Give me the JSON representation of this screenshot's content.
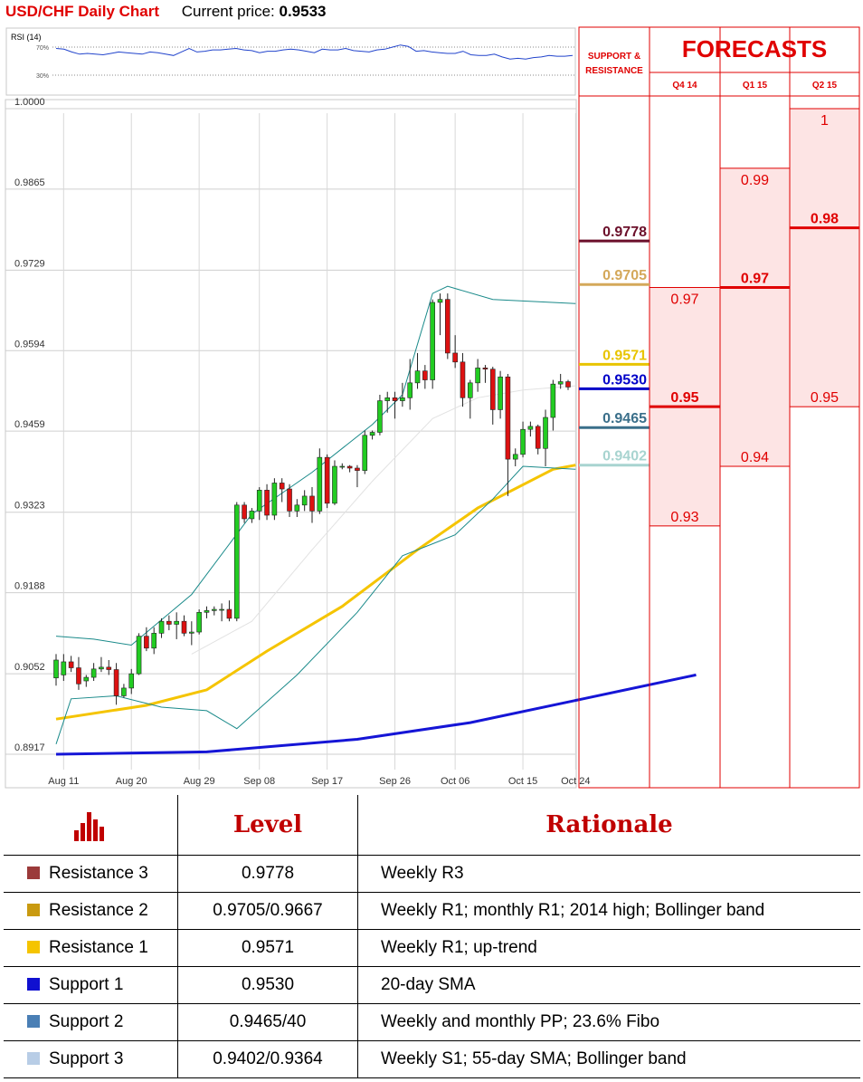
{
  "header": {
    "title": "USD/CHF Daily Chart",
    "price_label": "Current price:",
    "price_value": "0.9533"
  },
  "rsi": {
    "label": "RSI (14)",
    "levels": [
      "70%",
      "30%"
    ],
    "values": [
      68,
      67,
      63,
      60,
      61,
      60,
      59,
      61,
      63,
      62,
      61,
      60,
      63,
      62,
      60,
      58,
      63,
      68,
      63,
      64,
      66,
      66,
      67,
      68,
      66,
      65,
      62,
      64,
      64,
      66,
      67,
      66,
      64,
      62,
      67,
      66,
      66,
      68,
      65,
      64,
      63,
      66,
      67,
      70,
      73,
      71,
      64,
      65,
      63,
      62,
      61,
      61,
      64,
      59,
      58,
      58,
      60,
      56,
      53,
      54,
      53,
      55,
      56,
      58,
      57,
      57,
      58
    ]
  },
  "chart_data": {
    "type": "candlestick",
    "title": "USD/CHF Daily Chart",
    "y_ticks": [
      "1.0000",
      "0.9865",
      "0.9729",
      "0.9594",
      "0.9459",
      "0.9323",
      "0.9188",
      "0.9052",
      "0.8917"
    ],
    "ylim": [
      0.8917,
      1.0
    ],
    "x_ticks": [
      "Aug 11",
      "Aug 20",
      "Aug 29",
      "Sep 08",
      "Sep 17",
      "Sep 26",
      "Oct 06",
      "Oct 15",
      "Oct 24"
    ],
    "candles": [
      {
        "o": 0.9045,
        "h": 0.9085,
        "l": 0.9032,
        "c": 0.9075
      },
      {
        "o": 0.905,
        "h": 0.9085,
        "l": 0.904,
        "c": 0.9072
      },
      {
        "o": 0.9072,
        "h": 0.9082,
        "l": 0.9055,
        "c": 0.9062
      },
      {
        "o": 0.9062,
        "h": 0.908,
        "l": 0.9025,
        "c": 0.9035
      },
      {
        "o": 0.904,
        "h": 0.905,
        "l": 0.903,
        "c": 0.9046
      },
      {
        "o": 0.9046,
        "h": 0.907,
        "l": 0.904,
        "c": 0.906
      },
      {
        "o": 0.906,
        "h": 0.908,
        "l": 0.9055,
        "c": 0.9063
      },
      {
        "o": 0.9063,
        "h": 0.9075,
        "l": 0.905,
        "c": 0.9059
      },
      {
        "o": 0.9059,
        "h": 0.907,
        "l": 0.9,
        "c": 0.9015
      },
      {
        "o": 0.9015,
        "h": 0.9035,
        "l": 0.9012,
        "c": 0.9028
      },
      {
        "o": 0.9028,
        "h": 0.906,
        "l": 0.9018,
        "c": 0.9052
      },
      {
        "o": 0.9052,
        "h": 0.912,
        "l": 0.905,
        "c": 0.9115
      },
      {
        "o": 0.9115,
        "h": 0.913,
        "l": 0.909,
        "c": 0.9095
      },
      {
        "o": 0.9095,
        "h": 0.913,
        "l": 0.9085,
        "c": 0.912
      },
      {
        "o": 0.912,
        "h": 0.9145,
        "l": 0.9112,
        "c": 0.914
      },
      {
        "o": 0.914,
        "h": 0.915,
        "l": 0.9125,
        "c": 0.9135
      },
      {
        "o": 0.9135,
        "h": 0.9155,
        "l": 0.911,
        "c": 0.914
      },
      {
        "o": 0.914,
        "h": 0.915,
        "l": 0.9115,
        "c": 0.912
      },
      {
        "o": 0.912,
        "h": 0.914,
        "l": 0.91,
        "c": 0.9122
      },
      {
        "o": 0.9122,
        "h": 0.916,
        "l": 0.9118,
        "c": 0.9155
      },
      {
        "o": 0.9155,
        "h": 0.9165,
        "l": 0.9145,
        "c": 0.9158
      },
      {
        "o": 0.9158,
        "h": 0.9165,
        "l": 0.915,
        "c": 0.916
      },
      {
        "o": 0.916,
        "h": 0.917,
        "l": 0.914,
        "c": 0.916
      },
      {
        "o": 0.916,
        "h": 0.9175,
        "l": 0.914,
        "c": 0.9145
      },
      {
        "o": 0.9145,
        "h": 0.934,
        "l": 0.914,
        "c": 0.9335
      },
      {
        "o": 0.9335,
        "h": 0.934,
        "l": 0.9305,
        "c": 0.9312
      },
      {
        "o": 0.9312,
        "h": 0.933,
        "l": 0.9305,
        "c": 0.9325
      },
      {
        "o": 0.9325,
        "h": 0.9365,
        "l": 0.931,
        "c": 0.936
      },
      {
        "o": 0.936,
        "h": 0.937,
        "l": 0.931,
        "c": 0.9318
      },
      {
        "o": 0.9318,
        "h": 0.938,
        "l": 0.931,
        "c": 0.9372
      },
      {
        "o": 0.9372,
        "h": 0.938,
        "l": 0.934,
        "c": 0.9362
      },
      {
        "o": 0.9362,
        "h": 0.937,
        "l": 0.9315,
        "c": 0.9325
      },
      {
        "o": 0.9325,
        "h": 0.9345,
        "l": 0.9315,
        "c": 0.9335
      },
      {
        "o": 0.9335,
        "h": 0.936,
        "l": 0.9325,
        "c": 0.935
      },
      {
        "o": 0.935,
        "h": 0.9365,
        "l": 0.9305,
        "c": 0.9325
      },
      {
        "o": 0.9325,
        "h": 0.943,
        "l": 0.932,
        "c": 0.9415
      },
      {
        "o": 0.9415,
        "h": 0.942,
        "l": 0.933,
        "c": 0.9338
      },
      {
        "o": 0.9338,
        "h": 0.941,
        "l": 0.9335,
        "c": 0.94
      },
      {
        "o": 0.94,
        "h": 0.9405,
        "l": 0.9395,
        "c": 0.94
      },
      {
        "o": 0.94,
        "h": 0.9402,
        "l": 0.939,
        "c": 0.9397
      },
      {
        "o": 0.9397,
        "h": 0.9402,
        "l": 0.9365,
        "c": 0.9393
      },
      {
        "o": 0.9393,
        "h": 0.946,
        "l": 0.9387,
        "c": 0.9452
      },
      {
        "o": 0.9452,
        "h": 0.946,
        "l": 0.9445,
        "c": 0.9457
      },
      {
        "o": 0.9457,
        "h": 0.952,
        "l": 0.9452,
        "c": 0.951
      },
      {
        "o": 0.951,
        "h": 0.9525,
        "l": 0.949,
        "c": 0.9515
      },
      {
        "o": 0.9515,
        "h": 0.9525,
        "l": 0.948,
        "c": 0.951
      },
      {
        "o": 0.951,
        "h": 0.954,
        "l": 0.95,
        "c": 0.9515
      },
      {
        "o": 0.9515,
        "h": 0.958,
        "l": 0.9495,
        "c": 0.954
      },
      {
        "o": 0.954,
        "h": 0.959,
        "l": 0.953,
        "c": 0.956
      },
      {
        "o": 0.956,
        "h": 0.957,
        "l": 0.953,
        "c": 0.9545
      },
      {
        "o": 0.9545,
        "h": 0.968,
        "l": 0.953,
        "c": 0.9675
      },
      {
        "o": 0.9675,
        "h": 0.969,
        "l": 0.962,
        "c": 0.968
      },
      {
        "o": 0.968,
        "h": 0.969,
        "l": 0.958,
        "c": 0.959
      },
      {
        "o": 0.959,
        "h": 0.962,
        "l": 0.9565,
        "c": 0.9575
      },
      {
        "o": 0.9575,
        "h": 0.959,
        "l": 0.95,
        "c": 0.9515
      },
      {
        "o": 0.9515,
        "h": 0.9545,
        "l": 0.948,
        "c": 0.954
      },
      {
        "o": 0.954,
        "h": 0.958,
        "l": 0.9525,
        "c": 0.9565
      },
      {
        "o": 0.9565,
        "h": 0.957,
        "l": 0.954,
        "c": 0.9563
      },
      {
        "o": 0.9563,
        "h": 0.9567,
        "l": 0.947,
        "c": 0.9495
      },
      {
        "o": 0.9495,
        "h": 0.956,
        "l": 0.948,
        "c": 0.955
      },
      {
        "o": 0.955,
        "h": 0.9555,
        "l": 0.935,
        "c": 0.9412
      },
      {
        "o": 0.9412,
        "h": 0.943,
        "l": 0.94,
        "c": 0.942
      },
      {
        "o": 0.942,
        "h": 0.9475,
        "l": 0.9415,
        "c": 0.9462
      },
      {
        "o": 0.9462,
        "h": 0.9475,
        "l": 0.945,
        "c": 0.9467
      },
      {
        "o": 0.9467,
        "h": 0.947,
        "l": 0.942,
        "c": 0.943
      },
      {
        "o": 0.943,
        "h": 0.9495,
        "l": 0.94,
        "c": 0.9482
      },
      {
        "o": 0.9482,
        "h": 0.9545,
        "l": 0.946,
        "c": 0.9538
      },
      {
        "o": 0.9538,
        "h": 0.9555,
        "l": 0.953,
        "c": 0.9542
      },
      {
        "o": 0.9542,
        "h": 0.9545,
        "l": 0.9528,
        "c": 0.9533
      }
    ],
    "overlays": [
      {
        "name": "200-day SMA",
        "color": "#1515d6",
        "values": [
          [
            0,
            0.8917
          ],
          [
            20,
            0.8921
          ],
          [
            40,
            0.8942
          ],
          [
            55,
            0.897
          ],
          [
            70,
            0.901
          ],
          [
            85,
            0.905
          ]
        ]
      },
      {
        "name": "55-day SMA",
        "color": "#f5c400",
        "values": [
          [
            0,
            0.8976
          ],
          [
            12,
            0.8999
          ],
          [
            20,
            0.9025
          ],
          [
            28,
            0.909
          ],
          [
            38,
            0.9165
          ],
          [
            48,
            0.926
          ],
          [
            56,
            0.933
          ],
          [
            66,
            0.9395
          ],
          [
            69,
            0.9402
          ]
        ]
      },
      {
        "name": "Bollinger upper",
        "color": "#1a8a8a",
        "values": [
          [
            0,
            0.9115
          ],
          [
            5,
            0.911
          ],
          [
            10,
            0.91
          ],
          [
            18,
            0.9185
          ],
          [
            26,
            0.932
          ],
          [
            34,
            0.939
          ],
          [
            42,
            0.947
          ],
          [
            46,
            0.952
          ],
          [
            50,
            0.969
          ],
          [
            52,
            0.9702
          ],
          [
            58,
            0.968
          ],
          [
            69,
            0.9673
          ]
        ]
      },
      {
        "name": "Bollinger lower",
        "color": "#1a8a8a",
        "values": [
          [
            0,
            0.8934
          ],
          [
            2,
            0.901
          ],
          [
            8,
            0.9015
          ],
          [
            14,
            0.8996
          ],
          [
            20,
            0.899
          ],
          [
            24,
            0.896
          ],
          [
            32,
            0.905
          ],
          [
            40,
            0.9155
          ],
          [
            46,
            0.925
          ],
          [
            50,
            0.927
          ],
          [
            53,
            0.9285
          ],
          [
            58,
            0.9345
          ],
          [
            62,
            0.94
          ],
          [
            69,
            0.9395
          ]
        ]
      },
      {
        "name": "20-day SMA",
        "color": "#e2e2e2",
        "values": [
          [
            18,
            0.9085
          ],
          [
            26,
            0.914
          ],
          [
            34,
            0.926
          ],
          [
            42,
            0.9375
          ],
          [
            50,
            0.948
          ],
          [
            56,
            0.9515
          ],
          [
            62,
            0.9528
          ],
          [
            69,
            0.9535
          ]
        ]
      }
    ]
  },
  "forecasts": {
    "title": "FORECASTS",
    "sr_header": "SUPPORT & RESISTANCE",
    "columns": [
      "Q4 14",
      "Q1 15",
      "Q2 15"
    ],
    "sr_levels": [
      {
        "value": "0.9778",
        "color": "#6b0f2a"
      },
      {
        "value": "0.9705",
        "color": "#d4a85a"
      },
      {
        "value": "0.9571",
        "color": "#e8c400"
      },
      {
        "value": "0.9530",
        "color": "#0000c8"
      },
      {
        "value": "0.9465",
        "color": "#3a6f8a"
      },
      {
        "value": "0.9402",
        "color": "#a8d4d0"
      }
    ],
    "q4": {
      "top": "0.97",
      "median": "0.95",
      "bottom": "0.93",
      "range": [
        0.93,
        0.97
      ],
      "median_value": 0.95
    },
    "q1": {
      "top": "0.99",
      "median": "0.97",
      "bottom": "0.94",
      "range": [
        0.94,
        0.99
      ],
      "median_value": 0.97
    },
    "q2": {
      "top": "1",
      "median": "0.98",
      "bottom": "0.95",
      "range": [
        0.95,
        1.0
      ],
      "median_value": 0.98
    }
  },
  "table": {
    "header": {
      "level": "Level",
      "rationale": "Rationale"
    },
    "rows": [
      {
        "name": "Resistance 3",
        "level": "0.9778",
        "rationale": "Weekly R3",
        "color": "#9b3a3a"
      },
      {
        "name": "Resistance 2",
        "level": "0.9705/0.9667",
        "rationale": "Weekly R1; monthly R1; 2014 high; Bollinger band",
        "color": "#c99a10"
      },
      {
        "name": "Resistance 1",
        "level": "0.9571",
        "rationale": "Weekly R1; up-trend",
        "color": "#f5c400"
      },
      {
        "name": "Support 1",
        "level": "0.9530",
        "rationale": "20-day SMA",
        "color": "#1010d0"
      },
      {
        "name": "Support 2",
        "level": "0.9465/40",
        "rationale": "Weekly and monthly PP; 23.6% Fibo",
        "color": "#4a7fb5"
      },
      {
        "name": "Support 3",
        "level": "0.9402/0.9364",
        "rationale": "Weekly S1; 55-day SMA; Bollinger band",
        "color": "#b8cde6"
      }
    ]
  }
}
